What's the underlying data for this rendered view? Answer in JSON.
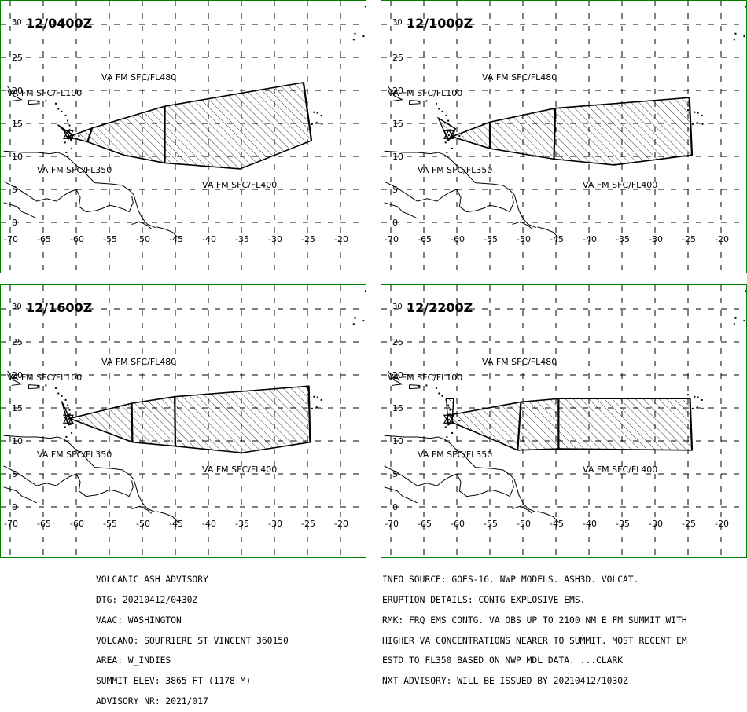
{
  "axis": {
    "lon_ticks": [
      "-70",
      "-65",
      "-60",
      "-55",
      "-50",
      "-45",
      "-40",
      "-35",
      "-30",
      "-25",
      "-20"
    ],
    "lat_ticks": [
      "0",
      "5",
      "10",
      "15",
      "20",
      "25",
      "30"
    ]
  },
  "panels": [
    {
      "time": "12/0400Z",
      "labels": {
        "fl480": "VA FM SFC/FL480",
        "fl100": "VA FM SFC/FL100",
        "fl350": "VA FM SFC/FL350",
        "fl400": "VA FM SFC/FL400"
      },
      "ash_polygon_lonlat": [
        [
          -60.5,
          13.2
        ],
        [
          -57.6,
          14.3
        ],
        [
          -52,
          16
        ],
        [
          -46.6,
          17.6
        ],
        [
          -25.6,
          21.2
        ],
        [
          -24.4,
          12.4
        ],
        [
          -35.2,
          8.1
        ],
        [
          -46.6,
          9.0
        ],
        [
          -52.8,
          10.2
        ],
        [
          -58.3,
          12.2
        ],
        [
          -61.3,
          13.0
        ],
        [
          -60.5,
          13.2
        ]
      ],
      "ash_dividers_lonlat": [
        [
          [
            -57.6,
            14.3
          ],
          [
            -58.3,
            12.2
          ]
        ],
        [
          [
            -46.6,
            17.6
          ],
          [
            -46.6,
            9.0
          ]
        ],
        [
          [
            -25.6,
            21.2
          ],
          [
            -24.4,
            12.4
          ]
        ]
      ],
      "source_wedge_lonlat": [
        [
          -61.2,
          13.3
        ],
        [
          -62.8,
          14.8
        ],
        [
          -60.5,
          13.2
        ],
        [
          -60.8,
          12.4
        ]
      ]
    },
    {
      "time": "12/1000Z",
      "labels": {
        "fl480": "VA FM SFC/FL480",
        "fl100": "VA FM SFC/FL100",
        "fl350": "VA FM SFC/FL350",
        "fl400": "VA FM SFC/FL400"
      },
      "ash_polygon_lonlat": [
        [
          -60.7,
          13.0
        ],
        [
          -55,
          15.2
        ],
        [
          -45.1,
          17.3
        ],
        [
          -24.8,
          18.9
        ],
        [
          -24.4,
          10.2
        ],
        [
          -36.2,
          8.7
        ],
        [
          -45.3,
          9.6
        ],
        [
          -55,
          11.2
        ],
        [
          -60.8,
          13.0
        ]
      ],
      "ash_dividers_lonlat": [
        [
          [
            -55,
            15.2
          ],
          [
            -55,
            11.2
          ]
        ],
        [
          [
            -45.1,
            17.3
          ],
          [
            -45.3,
            9.6
          ]
        ],
        [
          [
            -24.8,
            18.9
          ],
          [
            -24.4,
            10.2
          ]
        ]
      ],
      "source_wedge_lonlat": [
        [
          -61.3,
          12.4
        ],
        [
          -62.8,
          15.8
        ],
        [
          -60.2,
          14.2
        ],
        [
          -60.7,
          13.0
        ]
      ]
    },
    {
      "time": "12/1600Z",
      "labels": {
        "fl480": "VA FM SFC/FL480",
        "fl100": "VA FM SFC/FL100",
        "fl350": "VA FM SFC/FL350",
        "fl400": "VA FM SFC/FL400"
      },
      "ash_polygon_lonlat": [
        [
          -61.0,
          13.4
        ],
        [
          -51.6,
          15.7
        ],
        [
          -45.1,
          16.7
        ],
        [
          -24.8,
          18.3
        ],
        [
          -24.6,
          9.8
        ],
        [
          -34.9,
          8.2
        ],
        [
          -45.0,
          9.2
        ],
        [
          -51.5,
          9.8
        ],
        [
          -61.0,
          13.4
        ]
      ],
      "ash_dividers_lonlat": [
        [
          [
            -51.6,
            15.7
          ],
          [
            -51.5,
            9.8
          ]
        ],
        [
          [
            -45.1,
            16.7
          ],
          [
            -45.0,
            9.2
          ]
        ],
        [
          [
            -24.8,
            18.3
          ],
          [
            -24.6,
            9.8
          ]
        ]
      ],
      "source_wedge_lonlat": [
        [
          -61.2,
          12.4
        ],
        [
          -62.2,
          16.0
        ],
        [
          -61.0,
          13.4
        ],
        [
          -60.5,
          12.6
        ]
      ]
    },
    {
      "time": "12/2200Z",
      "labels": {
        "fl480": "VA FM SFC/FL480",
        "fl100": "VA FM SFC/FL100",
        "fl350": "VA FM SFC/FL350",
        "fl400": "VA FM SFC/FL400"
      },
      "ash_polygon_lonlat": [
        [
          -60.7,
          14.0
        ],
        [
          -50.3,
          15.9
        ],
        [
          -44.6,
          16.4
        ],
        [
          -24.7,
          16.4
        ],
        [
          -24.4,
          8.6
        ],
        [
          -44.6,
          8.8
        ],
        [
          -50.8,
          8.6
        ],
        [
          -60.7,
          12.8
        ],
        [
          -60.7,
          14.0
        ]
      ],
      "ash_dividers_lonlat": [
        [
          [
            -50.3,
            15.9
          ],
          [
            -50.8,
            8.6
          ]
        ],
        [
          [
            -44.6,
            16.4
          ],
          [
            -44.6,
            8.8
          ]
        ],
        [
          [
            -24.7,
            16.4
          ],
          [
            -24.4,
            8.6
          ]
        ]
      ],
      "source_wedge_lonlat": [
        [
          -61.3,
          12.4
        ],
        [
          -61.6,
          16.4
        ],
        [
          -60.5,
          16.4
        ],
        [
          -60.7,
          12.8
        ]
      ]
    }
  ],
  "footer_left": [
    "VOLCANIC ASH ADVISORY",
    "DTG: 20210412/0430Z",
    "VAAC: WASHINGTON",
    "VOLCANO: SOUFRIERE ST VINCENT 360150",
    "AREA: W_INDIES",
    "SUMMIT ELEV: 3865 FT (1178 M)",
    "ADVISORY NR: 2021/017"
  ],
  "footer_right": [
    "INFO SOURCE: GOES-16. NWP MODELS. ASH3D. VOLCAT.",
    "ERUPTION DETAILS: CONTG EXPLOSIVE EMS.",
    "RMK: FRQ EMS CONTG. VA OBS UP TO 2100 NM E FM SUMMIT WITH",
    "HIGHER VA CONCENTRATIONS NEARER TO SUMMIT. MOST RECENT EM",
    "ESTD TO FL350 BASED ON NWP MDL DATA. ...CLARK",
    "NXT ADVISORY: WILL BE ISSUED BY 20210412/1030Z"
  ],
  "colors": {
    "frame": "#008000",
    "grid": "#000000",
    "ash": "#000000"
  }
}
